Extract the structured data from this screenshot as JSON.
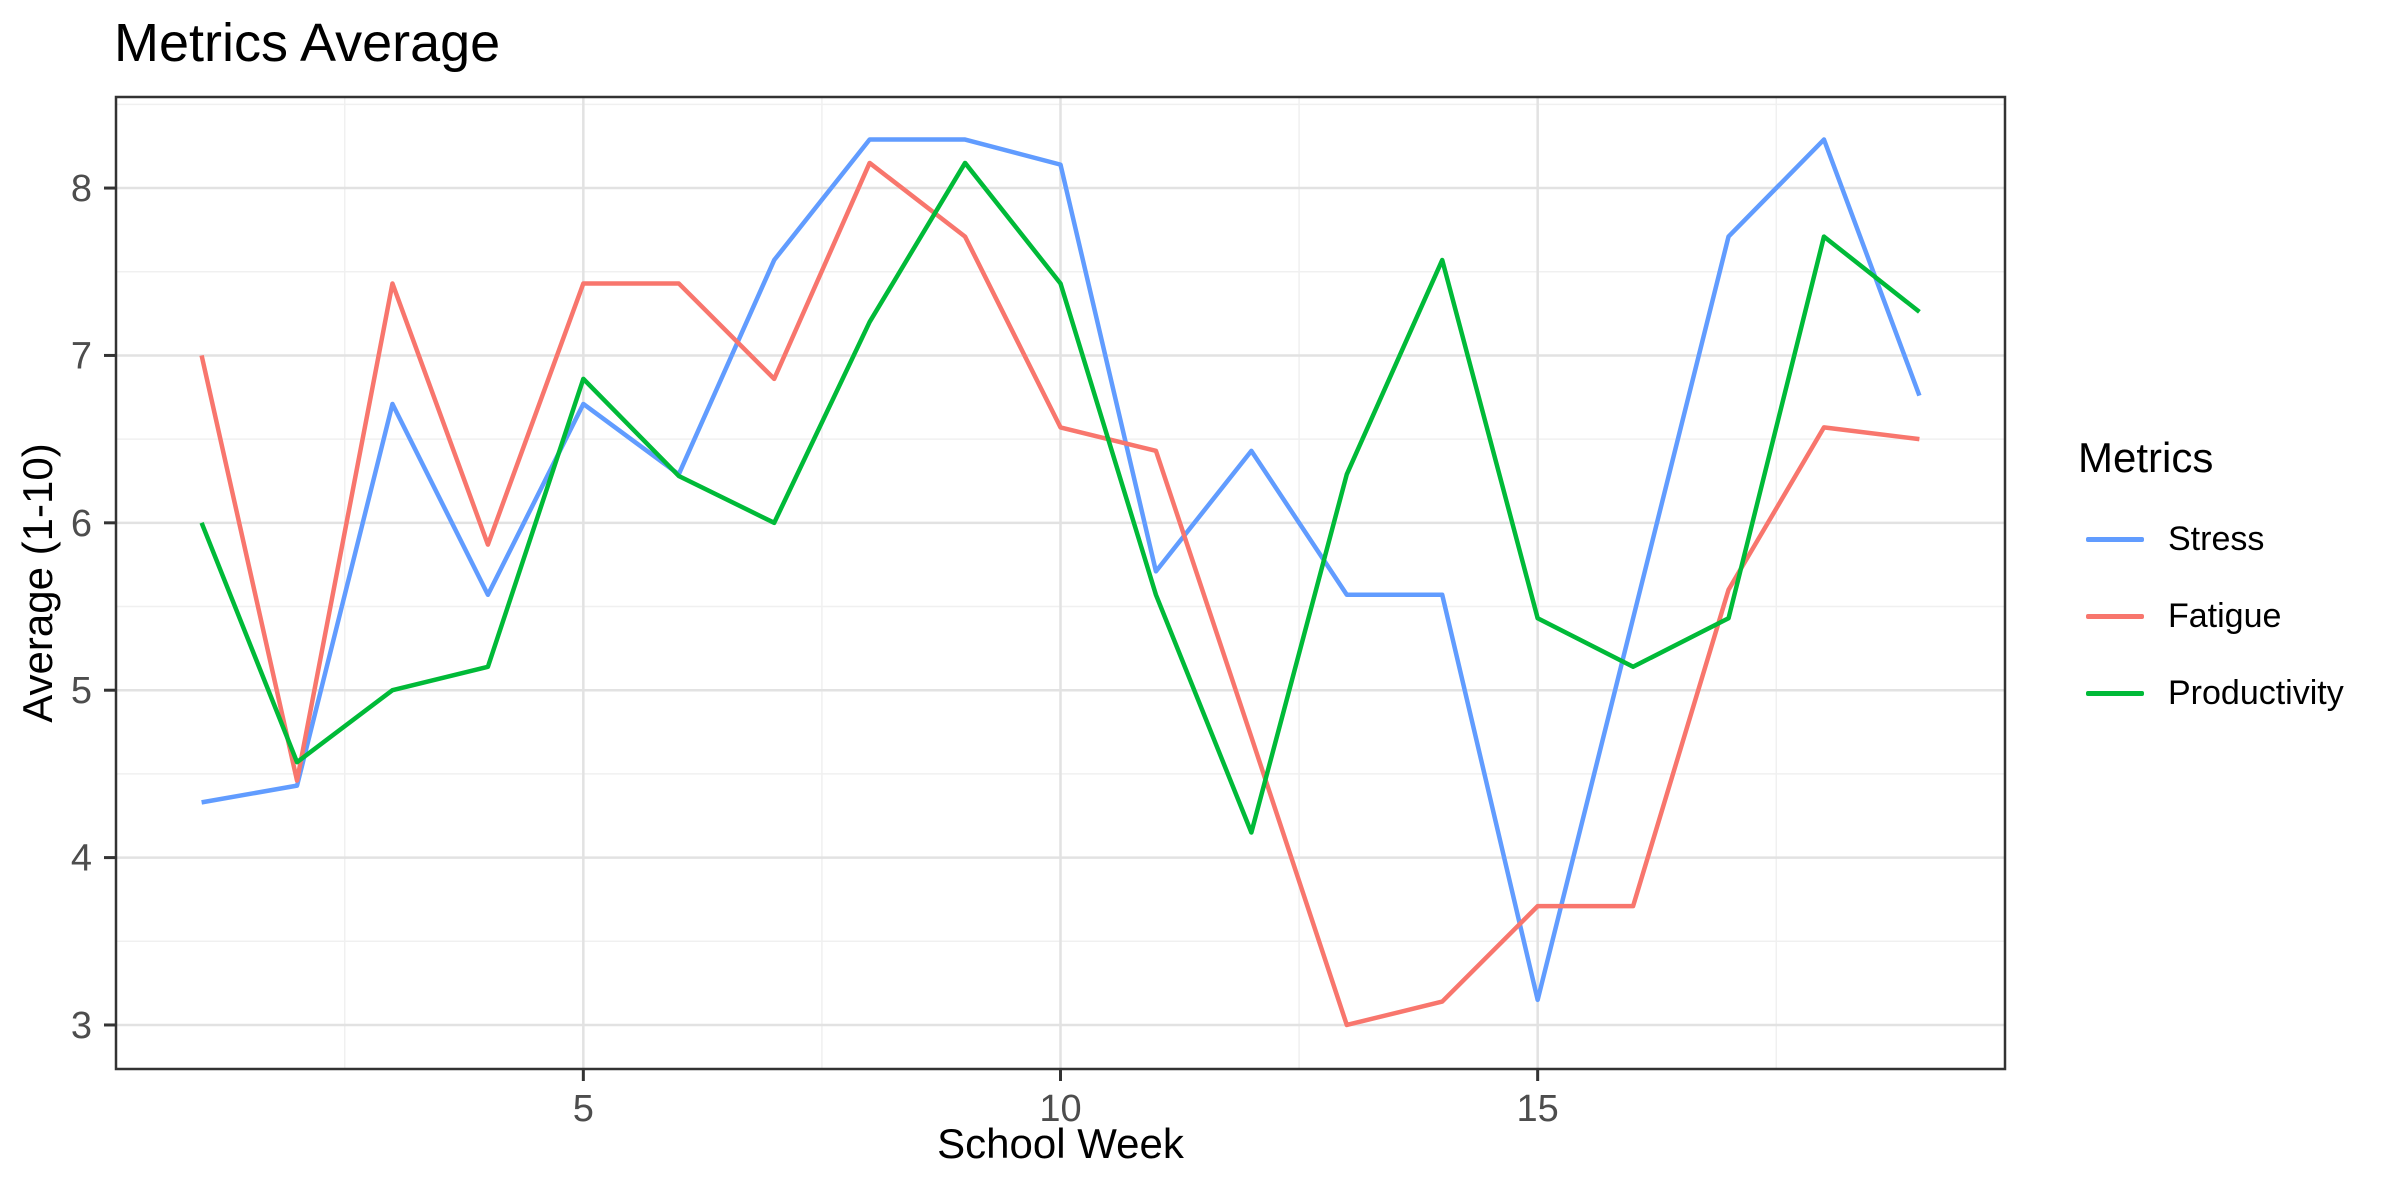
{
  "chart_data": {
    "type": "line",
    "title": "Metrics Average",
    "xlabel": "School Week",
    "ylabel": "Average (1-10)",
    "legend_title": "Metrics",
    "legend_position": "right",
    "grid": true,
    "x": [
      1,
      2,
      3,
      4,
      5,
      6,
      7,
      8,
      9,
      10,
      11,
      12,
      13,
      14,
      15,
      16,
      17,
      18,
      19
    ],
    "x_ticks": [
      5,
      10,
      15
    ],
    "x_minor_ticks": [
      2.5,
      7.5,
      12.5,
      17.5
    ],
    "y_ticks": [
      3,
      4,
      5,
      6,
      7,
      8
    ],
    "y_minor_ticks": [
      3.5,
      4.5,
      5.5,
      6.5,
      7.5,
      8.5
    ],
    "xlim": [
      0.103,
      19.897
    ],
    "ylim": [
      2.737,
      8.544
    ],
    "series": [
      {
        "name": "Stress",
        "color": "#619CFF",
        "values": [
          4.33,
          4.43,
          6.71,
          5.57,
          6.71,
          6.29,
          7.57,
          8.29,
          8.29,
          8.14,
          5.71,
          6.43,
          5.57,
          5.57,
          3.15,
          5.43,
          7.71,
          8.29,
          6.76
        ]
      },
      {
        "name": "Fatigue",
        "color": "#F8766D",
        "values": [
          7.0,
          4.46,
          7.43,
          5.87,
          7.43,
          7.43,
          6.86,
          8.15,
          7.71,
          6.57,
          6.43,
          4.72,
          3.0,
          3.14,
          3.71,
          3.71,
          5.6,
          6.57,
          6.5
        ]
      },
      {
        "name": "Productivity",
        "color": "#00BA38",
        "values": [
          6.0,
          4.57,
          5.0,
          5.14,
          6.86,
          6.28,
          6.0,
          7.2,
          8.15,
          7.43,
          5.57,
          4.15,
          6.29,
          7.57,
          5.43,
          5.14,
          5.43,
          7.71,
          7.26
        ]
      }
    ],
    "style": {
      "panel_border_color": "#333333",
      "tick_color": "#333333",
      "tick_label_color": "#4D4D4D",
      "major_grid_color": "#E2E2E2",
      "minor_grid_color": "#F0F0F0",
      "line_width": 4.5
    }
  }
}
